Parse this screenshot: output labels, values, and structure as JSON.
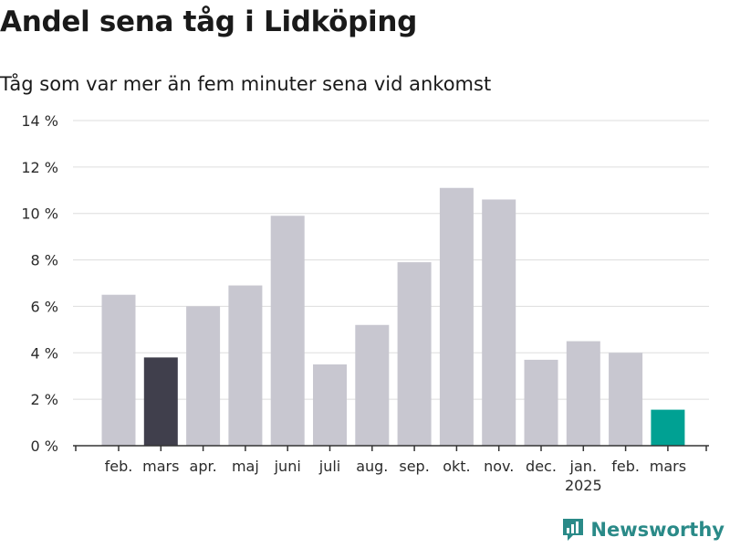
{
  "title": "Andel sena tåg i Lidköping",
  "subtitle": "Tåg som var mer än fem minuter sena vid ankomst",
  "brand": {
    "name": "Newsworthy",
    "icon": "newsworthy-logo-icon",
    "color": "#2a8a88"
  },
  "colors": {
    "default_bar": "#c8c7d0",
    "highlight_bar": "#403f4c",
    "latest_bar": "#00a193",
    "grid": "#dddddd",
    "axis": "#333333"
  },
  "chart_data": {
    "type": "bar",
    "title": "Andel sena tåg i Lidköping",
    "subtitle": "Tåg som var mer än fem minuter sena vid ankomst",
    "categories": [
      "feb.",
      "mars",
      "apr.",
      "maj",
      "juni",
      "juli",
      "aug.",
      "sep.",
      "okt.",
      "nov.",
      "dec.",
      "jan.",
      "feb.",
      "mars"
    ],
    "year_labels": [
      "",
      "",
      "",
      "",
      "",
      "",
      "",
      "",
      "",
      "",
      "",
      "2025",
      "",
      ""
    ],
    "values": [
      6.5,
      3.8,
      6.0,
      6.9,
      9.9,
      3.5,
      5.2,
      7.9,
      11.1,
      10.6,
      3.7,
      4.5,
      4.0,
      1.55
    ],
    "unit": "%",
    "ylim": [
      0,
      14
    ],
    "yticks": [
      0,
      2,
      4,
      6,
      8,
      10,
      12,
      14
    ],
    "ytick_labels": [
      "0 %",
      "2 %",
      "4 %",
      "6 %",
      "8 %",
      "10 %",
      "12 %",
      "14 %"
    ],
    "highlight": {
      "1": "highlight_bar",
      "13": "latest_bar"
    },
    "grid": true,
    "legend": "none",
    "xlabel": "",
    "ylabel": ""
  }
}
